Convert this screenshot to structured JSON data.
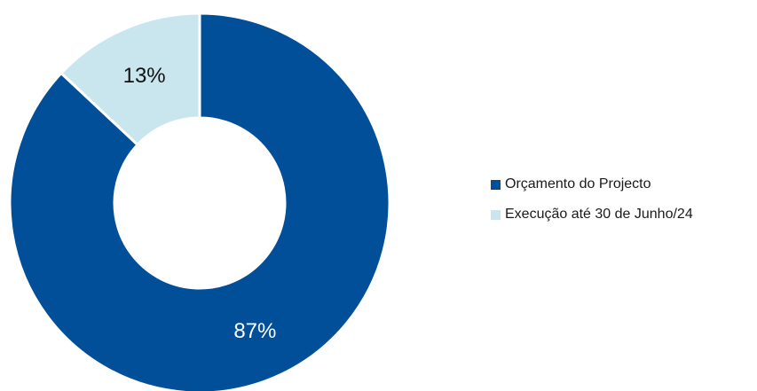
{
  "chart_data": {
    "type": "pie",
    "donut": true,
    "categories": [
      "Orçamento do Projecto",
      "Execução até 30 de Junho/24"
    ],
    "values": [
      87,
      13
    ],
    "value_labels": [
      "87%",
      "13%"
    ],
    "colors": [
      "#004f98",
      "#c9e6ef"
    ],
    "label_colors": [
      "#ffffff",
      "#111111"
    ],
    "legend": "right",
    "title": ""
  }
}
